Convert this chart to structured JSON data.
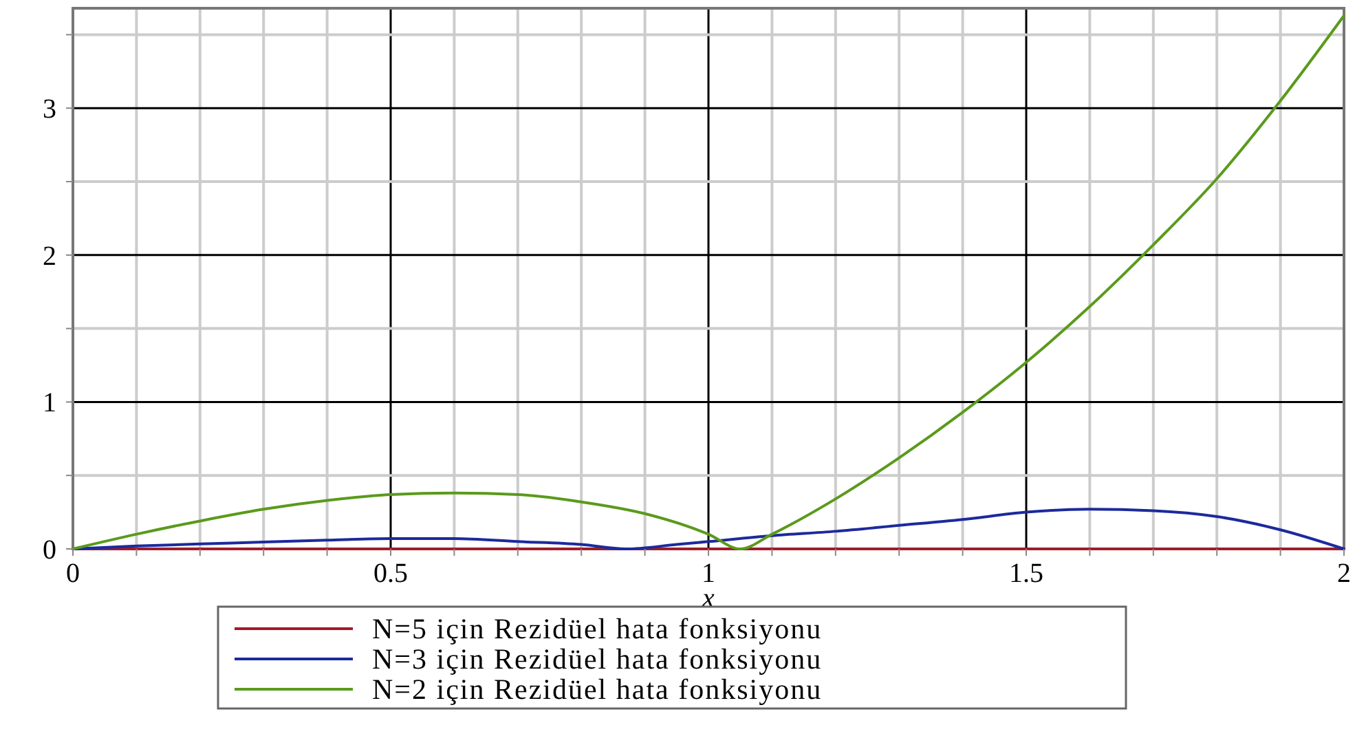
{
  "chart_data": {
    "type": "line",
    "xlabel": "x",
    "xlim": [
      0,
      2
    ],
    "ylim": [
      0,
      3.68
    ],
    "xticks": [
      0,
      {
        "value": 0.1,
        "label": null
      },
      {
        "value": 0.2,
        "label": null
      },
      {
        "value": 0.3,
        "label": null
      },
      {
        "value": 0.4,
        "label": null
      },
      0.5,
      {
        "value": 0.6,
        "label": null
      },
      {
        "value": 0.7,
        "label": null
      },
      {
        "value": 0.8,
        "label": null
      },
      {
        "value": 0.9,
        "label": null
      },
      1,
      {
        "value": 1.1,
        "label": null
      },
      {
        "value": 1.2,
        "label": null
      },
      {
        "value": 1.3,
        "label": null
      },
      {
        "value": 1.4,
        "label": null
      },
      1.5,
      {
        "value": 1.6,
        "label": null
      },
      {
        "value": 1.7,
        "label": null
      },
      {
        "value": 1.8,
        "label": null
      },
      {
        "value": 1.9,
        "label": null
      },
      2
    ],
    "yticks": [
      0,
      {
        "value": 0.5,
        "label": null
      },
      1,
      {
        "value": 1.5,
        "label": null
      },
      2,
      {
        "value": 2.5,
        "label": null
      },
      3,
      {
        "value": 3.5,
        "label": null
      }
    ],
    "grid": true,
    "legend": "bottom",
    "line_style": "solid",
    "series": [
      {
        "name": "N=5 için Rezidüel hata fonksiyonu",
        "color": "#a01c28",
        "x": [
          0,
          0.5,
          1,
          1.5,
          2
        ],
        "values": [
          0,
          0,
          0,
          0,
          0
        ]
      },
      {
        "name": "N=3 için Rezidüel hata fonksiyonu",
        "color": "#1c2a9c",
        "x": [
          0,
          0.1,
          0.25,
          0.4,
          0.5,
          0.6,
          0.7,
          0.8,
          0.87,
          0.95,
          1,
          1.1,
          1.2,
          1.3,
          1.4,
          1.5,
          1.6,
          1.7,
          1.8,
          1.9,
          2
        ],
        "values": [
          0,
          0.02,
          0.04,
          0.06,
          0.07,
          0.07,
          0.05,
          0.03,
          0,
          0.03,
          0.05,
          0.09,
          0.12,
          0.16,
          0.2,
          0.25,
          0.27,
          0.26,
          0.22,
          0.13,
          0
        ]
      },
      {
        "name": "N=2 için Rezidüel hata fonksiyonu",
        "color": "#5a9a1c",
        "x": [
          0,
          0.1,
          0.2,
          0.3,
          0.4,
          0.5,
          0.6,
          0.7,
          0.8,
          0.9,
          1,
          1.05,
          1.1,
          1.2,
          1.3,
          1.4,
          1.5,
          1.6,
          1.7,
          1.8,
          1.9,
          2
        ],
        "values": [
          0,
          0.1,
          0.19,
          0.27,
          0.33,
          0.37,
          0.38,
          0.37,
          0.32,
          0.24,
          0.1,
          0,
          0.1,
          0.34,
          0.62,
          0.93,
          1.27,
          1.65,
          2.07,
          2.52,
          3.05,
          3.63
        ]
      }
    ]
  }
}
